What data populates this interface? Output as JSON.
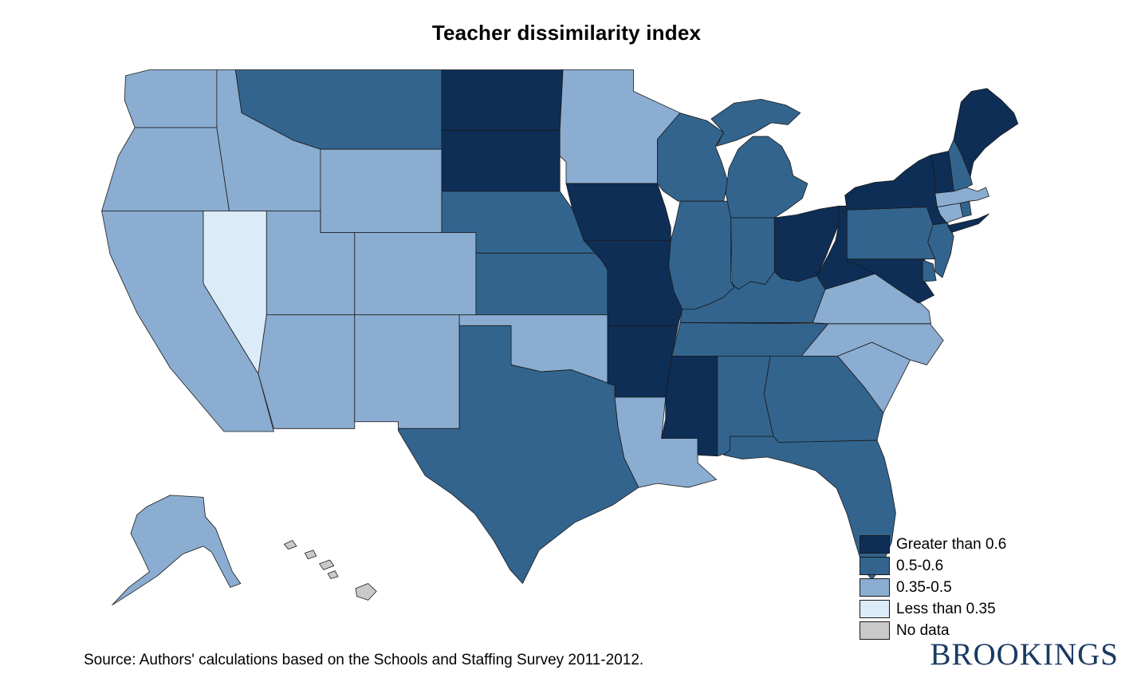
{
  "title": "Teacher dissimilarity index",
  "source": "Source: Authors' calculations based on the Schools and Staffing Survey 2011-2012.",
  "branding": "BROOKINGS",
  "branding_color": "#1a3a63",
  "legend": {
    "items": [
      {
        "label": "Greater than 0.6",
        "color": "#0e2e56"
      },
      {
        "label": "0.5-0.6",
        "color": "#32648e"
      },
      {
        "label": "0.35-0.5",
        "color": "#8badd1"
      },
      {
        "label": "Less than 0.35",
        "color": "#dcebf8"
      },
      {
        "label": "No data",
        "color": "#c9c9c9"
      }
    ]
  },
  "chart_data": {
    "type": "choropleth_map",
    "region": "United States",
    "title": "Teacher dissimilarity index",
    "categories": [
      "Greater than 0.6",
      "0.5-0.6",
      "0.35-0.5",
      "Less than 0.35",
      "No data"
    ],
    "states": {
      "WA": "0.35-0.5",
      "OR": "0.35-0.5",
      "CA": "0.35-0.5",
      "NV": "Less than 0.35",
      "ID": "0.35-0.5",
      "MT": "0.5-0.6",
      "WY": "0.35-0.5",
      "UT": "0.35-0.5",
      "CO": "0.35-0.5",
      "AZ": "0.35-0.5",
      "NM": "0.35-0.5",
      "ND": "Greater than 0.6",
      "SD": "Greater than 0.6",
      "NE": "0.5-0.6",
      "KS": "0.5-0.6",
      "OK": "0.35-0.5",
      "TX": "0.5-0.6",
      "MN": "0.35-0.5",
      "IA": "Greater than 0.6",
      "MO": "Greater than 0.6",
      "AR": "Greater than 0.6",
      "LA": "0.35-0.5",
      "WI": "0.5-0.6",
      "IL": "0.5-0.6",
      "MI": "0.5-0.6",
      "IN": "0.5-0.6",
      "OH": "Greater than 0.6",
      "KY": "0.5-0.6",
      "TN": "0.5-0.6",
      "MS": "Greater than 0.6",
      "AL": "0.5-0.6",
      "GA": "0.5-0.6",
      "FL": "0.5-0.6",
      "SC": "0.35-0.5",
      "NC": "0.35-0.5",
      "VA": "0.35-0.5",
      "WV": "Greater than 0.6",
      "MD": "Greater than 0.6",
      "DE": "0.5-0.6",
      "PA": "0.5-0.6",
      "NJ": "0.5-0.6",
      "NY": "Greater than 0.6",
      "CT": "0.35-0.5",
      "RI": "0.5-0.6",
      "MA": "0.35-0.5",
      "VT": "Greater than 0.6",
      "NH": "0.5-0.6",
      "ME": "Greater than 0.6",
      "AK": "0.35-0.5",
      "HI": "No data"
    }
  }
}
